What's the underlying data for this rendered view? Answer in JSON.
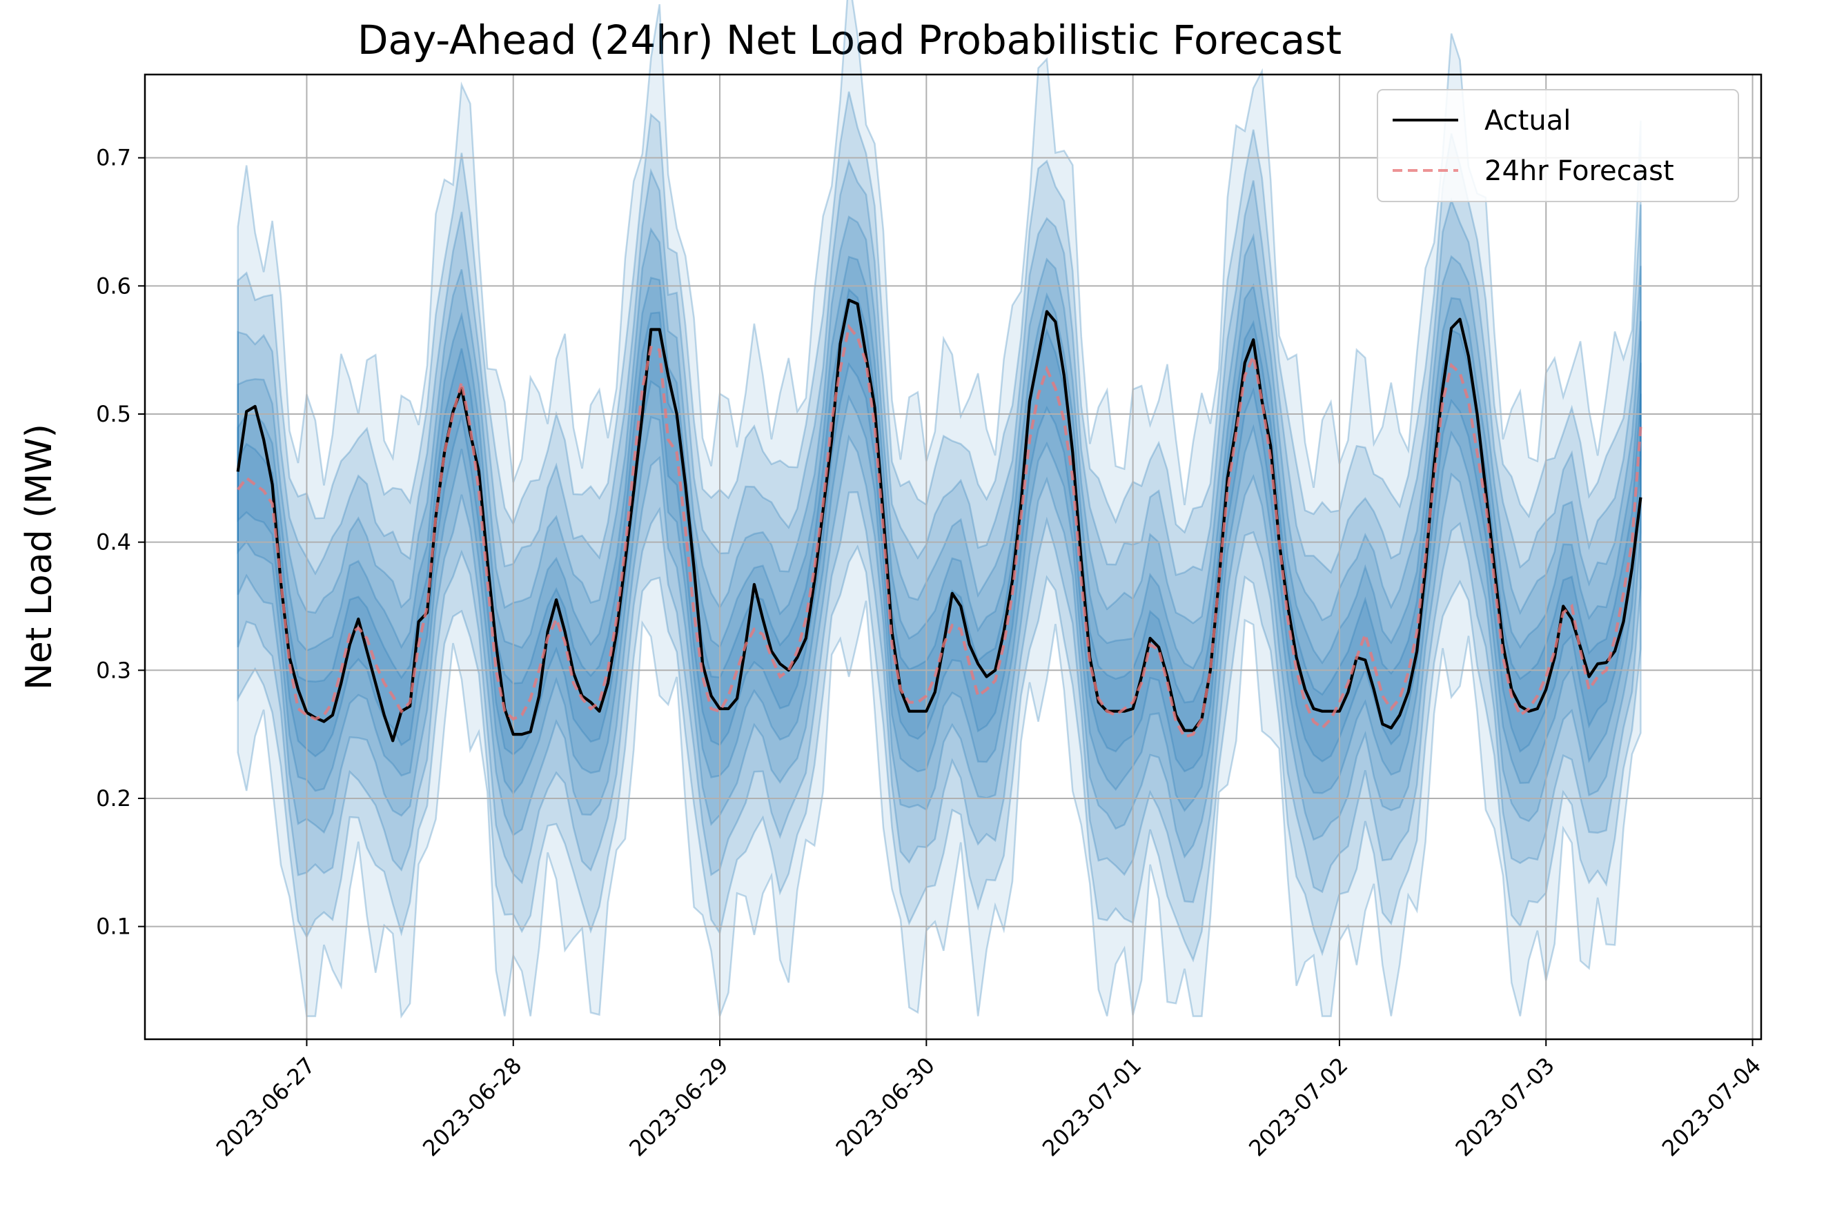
{
  "chart_data": {
    "type": "line",
    "title": "Day-Ahead (24hr) Net Load Probabilistic Forecast",
    "xlabel": "",
    "ylabel": "Net Load (MW)",
    "x_start": "2023-06-26T16:00",
    "x_step_hours": 1,
    "xlim": [
      "2026-06-26T11:30",
      "2023-07-04T01:00"
    ],
    "ylim": [
      0.012,
      0.765
    ],
    "xticks": [
      "2023-06-27",
      "2023-06-28",
      "2023-06-29",
      "2023-06-30",
      "2023-07-01",
      "2023-07-02",
      "2023-07-03",
      "2023-07-04"
    ],
    "yticks": [
      0.1,
      0.2,
      0.3,
      0.4,
      0.5,
      0.6,
      0.7
    ],
    "grid": true,
    "legend_position": "top-right",
    "colors": {
      "actual": "#000000",
      "forecast": "#e8787a",
      "band": "#1f77b4",
      "grid": "#b0b0b0"
    },
    "quantile_bands": {
      "description_levels": 6,
      "half_widths_factor": [
        0.24,
        0.18,
        0.135,
        0.095,
        0.06,
        0.03
      ]
    },
    "series": [
      {
        "name": "Actual",
        "style": "solid",
        "values": [
          0.455,
          0.502,
          0.506,
          0.48,
          0.445,
          0.368,
          0.31,
          0.285,
          0.267,
          0.263,
          0.26,
          0.265,
          0.29,
          0.32,
          0.34,
          0.315,
          0.29,
          0.265,
          0.245,
          0.268,
          0.272,
          0.338,
          0.345,
          0.42,
          0.47,
          0.502,
          0.52,
          0.485,
          0.455,
          0.385,
          0.32,
          0.27,
          0.25,
          0.25,
          0.252,
          0.28,
          0.33,
          0.355,
          0.33,
          0.298,
          0.28,
          0.275,
          0.268,
          0.29,
          0.33,
          0.385,
          0.44,
          0.5,
          0.566,
          0.566,
          0.53,
          0.5,
          0.445,
          0.38,
          0.305,
          0.28,
          0.27,
          0.27,
          0.278,
          0.32,
          0.367,
          0.34,
          0.315,
          0.305,
          0.3,
          0.31,
          0.325,
          0.37,
          0.425,
          0.48,
          0.555,
          0.589,
          0.586,
          0.545,
          0.505,
          0.42,
          0.33,
          0.285,
          0.268,
          0.268,
          0.268,
          0.283,
          0.32,
          0.36,
          0.35,
          0.32,
          0.305,
          0.295,
          0.3,
          0.33,
          0.37,
          0.43,
          0.51,
          0.545,
          0.58,
          0.572,
          0.53,
          0.47,
          0.385,
          0.31,
          0.275,
          0.268,
          0.268,
          0.268,
          0.27,
          0.295,
          0.325,
          0.318,
          0.295,
          0.265,
          0.253,
          0.253,
          0.262,
          0.3,
          0.37,
          0.45,
          0.49,
          0.54,
          0.558,
          0.51,
          0.475,
          0.4,
          0.35,
          0.31,
          0.285,
          0.27,
          0.268,
          0.268,
          0.268,
          0.283,
          0.31,
          0.308,
          0.285,
          0.258,
          0.255,
          0.265,
          0.283,
          0.315,
          0.38,
          0.46,
          0.52,
          0.567,
          0.574,
          0.545,
          0.5,
          0.44,
          0.38,
          0.32,
          0.285,
          0.272,
          0.268,
          0.27,
          0.285,
          0.31,
          0.35,
          0.34,
          0.318,
          0.295,
          0.305,
          0.306,
          0.315,
          0.338,
          0.38,
          0.435
        ]
      },
      {
        "name": "24hr Forecast",
        "style": "dashed",
        "values": [
          0.441,
          0.45,
          0.445,
          0.44,
          0.43,
          0.37,
          0.305,
          0.27,
          0.265,
          0.262,
          0.265,
          0.275,
          0.3,
          0.328,
          0.333,
          0.325,
          0.305,
          0.29,
          0.28,
          0.268,
          0.275,
          0.32,
          0.35,
          0.42,
          0.47,
          0.5,
          0.525,
          0.49,
          0.44,
          0.37,
          0.3,
          0.268,
          0.262,
          0.265,
          0.278,
          0.3,
          0.325,
          0.34,
          0.322,
          0.29,
          0.278,
          0.27,
          0.275,
          0.3,
          0.34,
          0.395,
          0.46,
          0.52,
          0.552,
          0.55,
          0.48,
          0.47,
          0.41,
          0.345,
          0.295,
          0.27,
          0.268,
          0.28,
          0.3,
          0.32,
          0.332,
          0.328,
          0.31,
          0.295,
          0.3,
          0.315,
          0.34,
          0.38,
          0.43,
          0.495,
          0.535,
          0.568,
          0.56,
          0.54,
          0.49,
          0.41,
          0.32,
          0.285,
          0.275,
          0.275,
          0.28,
          0.295,
          0.32,
          0.335,
          0.332,
          0.305,
          0.28,
          0.285,
          0.292,
          0.32,
          0.36,
          0.42,
          0.48,
          0.515,
          0.535,
          0.52,
          0.495,
          0.45,
          0.37,
          0.305,
          0.278,
          0.268,
          0.265,
          0.27,
          0.275,
          0.29,
          0.32,
          0.316,
          0.29,
          0.26,
          0.248,
          0.25,
          0.262,
          0.3,
          0.37,
          0.44,
          0.485,
          0.53,
          0.545,
          0.51,
          0.465,
          0.4,
          0.34,
          0.3,
          0.275,
          0.26,
          0.255,
          0.262,
          0.275,
          0.29,
          0.31,
          0.328,
          0.305,
          0.28,
          0.27,
          0.278,
          0.298,
          0.33,
          0.39,
          0.45,
          0.51,
          0.538,
          0.532,
          0.51,
          0.47,
          0.43,
          0.37,
          0.31,
          0.28,
          0.265,
          0.27,
          0.28,
          0.295,
          0.315,
          0.345,
          0.35,
          0.315,
          0.285,
          0.295,
          0.3,
          0.325,
          0.36,
          0.4,
          0.49
        ]
      }
    ]
  }
}
